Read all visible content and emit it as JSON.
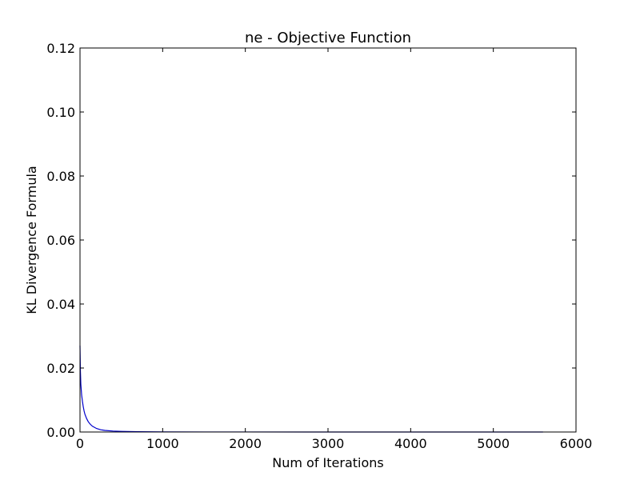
{
  "chart_data": {
    "type": "line",
    "title": "ne -  Objective Function",
    "xlabel": "Num of Iterations",
    "ylabel": "KL Divergence Formula",
    "xlim": [
      0,
      6000
    ],
    "ylim": [
      0,
      0.12
    ],
    "x_ticks": [
      0,
      1000,
      2000,
      3000,
      4000,
      5000,
      6000
    ],
    "y_ticks": [
      0.0,
      0.02,
      0.04,
      0.06,
      0.08,
      0.1,
      0.12
    ],
    "x_tick_labels": [
      "0",
      "1000",
      "2000",
      "3000",
      "4000",
      "5000",
      "6000"
    ],
    "y_tick_labels": [
      "0.00",
      "0.02",
      "0.04",
      "0.06",
      "0.08",
      "0.10",
      "0.12"
    ],
    "grid": false,
    "series": [
      {
        "color": "#0000cc",
        "x": [
          0,
          5,
          10,
          20,
          30,
          40,
          50,
          60,
          80,
          100,
          125,
          150,
          200,
          250,
          300,
          400,
          500,
          700,
          1000,
          1500,
          2000,
          3000,
          4000,
          5000,
          5600
        ],
        "y": [
          0.027,
          0.019,
          0.015,
          0.0115,
          0.0095,
          0.0078,
          0.0065,
          0.0055,
          0.0042,
          0.0032,
          0.0024,
          0.0018,
          0.0011,
          0.0007,
          0.0005,
          0.0003,
          0.0002,
          0.0001,
          5e-05,
          2e-05,
          1e-05,
          5e-06,
          3e-06,
          2e-06,
          1e-06
        ]
      }
    ]
  }
}
